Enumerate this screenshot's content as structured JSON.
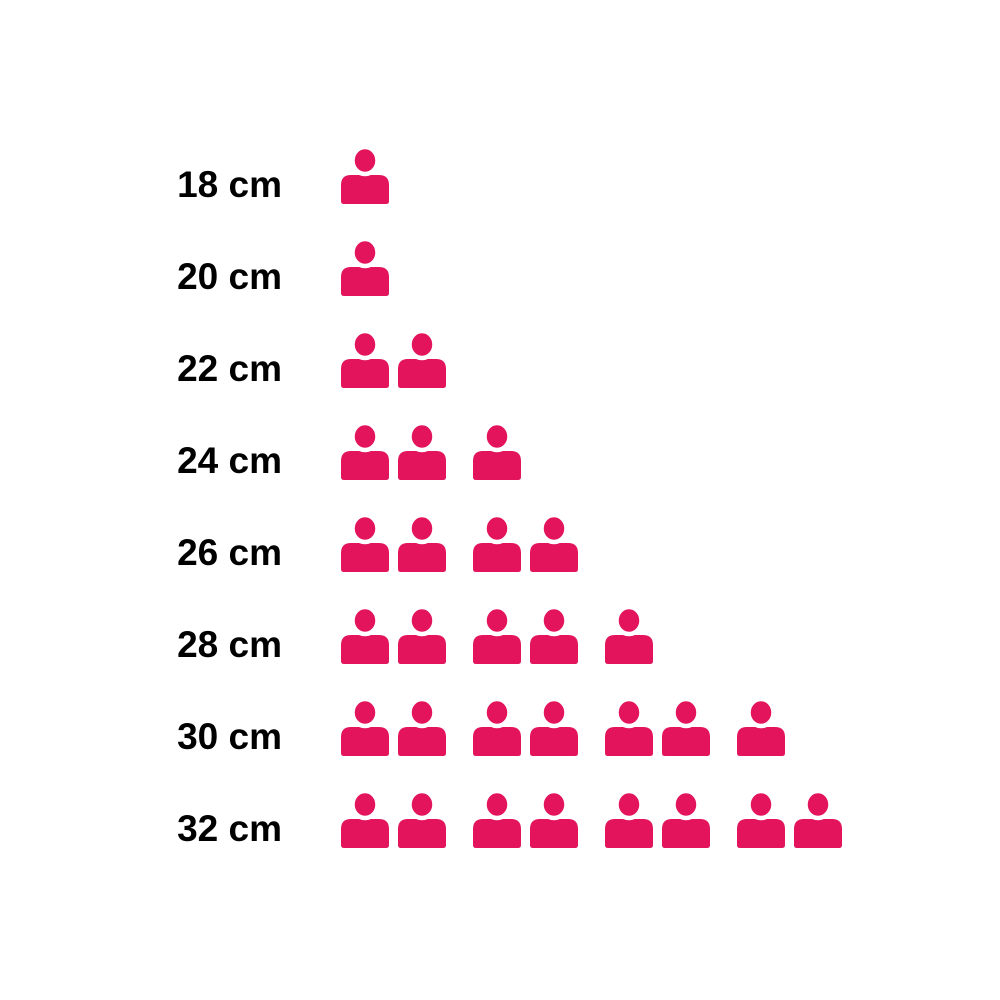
{
  "page": {
    "background": "#ffffff"
  },
  "chart_data": {
    "type": "bar",
    "variant": "pictogram-icon-array",
    "orientation": "horizontal",
    "icon": "person-icon",
    "icon_color": "#e3145c",
    "label_color": "#000000",
    "grouping": 2,
    "categories": [
      "18 cm",
      "20 cm",
      "22 cm",
      "24 cm",
      "26 cm",
      "28 cm",
      "30 cm",
      "32 cm"
    ],
    "values": [
      1,
      1,
      2,
      3,
      4,
      5,
      7,
      8
    ],
    "title": "",
    "xlabel": "",
    "ylabel": "",
    "legend_position": "none",
    "grid": false,
    "xlim": [
      0,
      8
    ]
  }
}
